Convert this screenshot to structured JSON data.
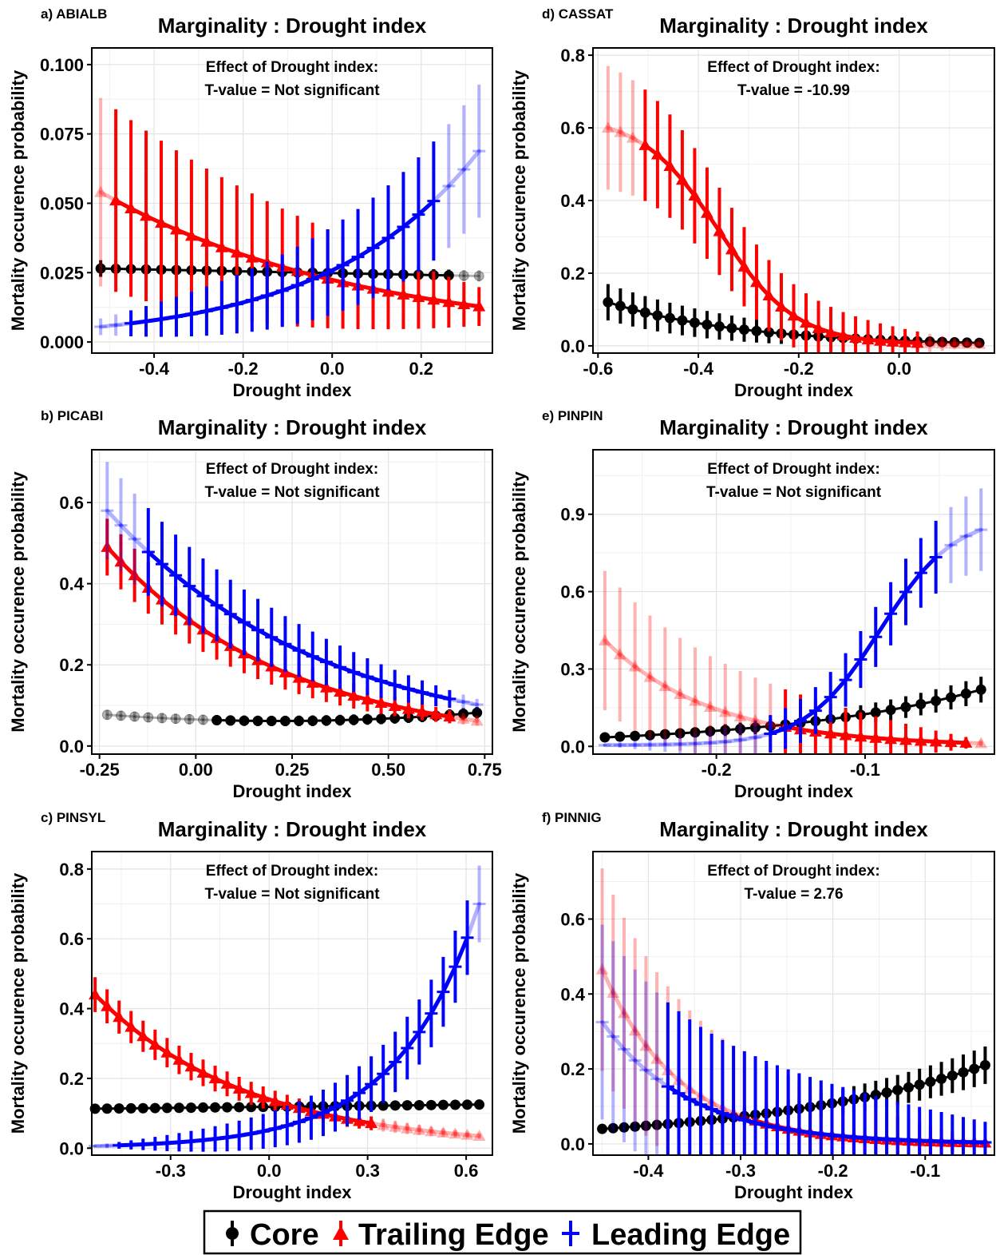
{
  "colors": {
    "core": "#000000",
    "trailing": "#ff0000",
    "leading": "#0000ff",
    "grid": "#e3e3e3",
    "frame": "#000000"
  },
  "legend": {
    "position": "bottom",
    "items": [
      {
        "label": "Core",
        "color": "#000000",
        "symbol": "circle"
      },
      {
        "label": "Trailing Edge",
        "color": "#ff0000",
        "symbol": "triangle"
      },
      {
        "label": "Leading Edge",
        "color": "#0000ff",
        "symbol": "cross"
      }
    ]
  },
  "chart_data": [
    {
      "panel": "a) ABIALB",
      "type": "line",
      "title": "Marginality : Drought index",
      "effect_line1": "Effect of Drought index:",
      "effect_line2": "T-value = Not significant",
      "xlabel": "Drought index",
      "ylabel": "Mortality occurence probability",
      "xlim": [
        -0.54,
        0.36
      ],
      "ylim": [
        -0.004,
        0.106
      ],
      "xticks": [
        -0.4,
        -0.2,
        0.0,
        0.2
      ],
      "xtick_labels": [
        "-0.4",
        "-0.2",
        "0.0",
        "0.2"
      ],
      "yticks": [
        0,
        0.025,
        0.05,
        0.075,
        0.1
      ],
      "ytick_labels": [
        "0.000",
        "0.025",
        "0.050",
        "0.075",
        "0.100"
      ],
      "series": [
        {
          "name": "Core",
          "xmin": -0.52,
          "xmax": 0.33,
          "n": 26,
          "curve": "lin",
          "y0": 0.0265,
          "y1": 0.0238,
          "err0": 0.003,
          "err1": 0.002,
          "faded_from": 0.29
        },
        {
          "name": "Trailing Edge",
          "xmin": -0.52,
          "xmax": 0.33,
          "n": 26,
          "curve": "exp",
          "y0": 0.054,
          "y1": 0.0128,
          "err0": 0.034,
          "err1": 0.007,
          "faded_to": -0.49
        },
        {
          "name": "Leading Edge",
          "xmin": -0.52,
          "xmax": 0.33,
          "n": 26,
          "curve": "exp",
          "y0": 0.0055,
          "y1": 0.0688,
          "err0": 0.003,
          "err1": 0.024,
          "faded_to": -0.48,
          "faded_from": 0.25
        }
      ]
    },
    {
      "panel": "b) PICABI",
      "type": "line",
      "title": "Marginality : Drought index",
      "effect_line1": "Effect of Drought index:",
      "effect_line2": "T-value = Not significant",
      "xlabel": "Drought index",
      "ylabel": "Mortality occurence probability",
      "xlim": [
        -0.27,
        0.77
      ],
      "ylim": [
        -0.02,
        0.73
      ],
      "xticks": [
        -0.25,
        0.0,
        0.25,
        0.5,
        0.75
      ],
      "xtick_labels": [
        "-0.25",
        "0.00",
        "0.25",
        "0.50",
        "0.75"
      ],
      "yticks": [
        0,
        0.2,
        0.4,
        0.6
      ],
      "ytick_labels": [
        "0.0",
        "0.2",
        "0.4",
        "0.6"
      ],
      "series": [
        {
          "name": "Core",
          "xmin": -0.23,
          "xmax": 0.73,
          "n": 28,
          "curve": "quad",
          "y0": 0.077,
          "y1": 0.082,
          "ymid": 0.044,
          "err0": 0.012,
          "err1": 0.014,
          "faded_to": 0.03
        },
        {
          "name": "Trailing Edge",
          "xmin": -0.23,
          "xmax": 0.73,
          "n": 28,
          "curve": "exp",
          "y0": 0.49,
          "y1": 0.062,
          "err0": 0.07,
          "err1": 0.012,
          "faded_from": 0.69
        },
        {
          "name": "Leading Edge",
          "xmin": -0.23,
          "xmax": 0.73,
          "n": 28,
          "curve": "exp",
          "y0": 0.58,
          "y1": 0.102,
          "err0": 0.12,
          "err1": 0.014,
          "faded_to": -0.14,
          "faded_from": 0.69
        }
      ]
    },
    {
      "panel": "c) PINSYL",
      "type": "line",
      "title": "Marginality : Drought index",
      "effect_line1": "Effect of Drought index:",
      "effect_line2": "T-value = Not significant",
      "xlabel": "Drought index",
      "ylabel": "Mortality occurence probability",
      "xlim": [
        -0.54,
        0.68
      ],
      "ylim": [
        -0.02,
        0.85
      ],
      "xticks": [
        -0.3,
        0.0,
        0.3,
        0.6
      ],
      "xtick_labels": [
        "-0.3",
        "0.0",
        "0.3",
        "0.6"
      ],
      "yticks": [
        0,
        0.2,
        0.4,
        0.6,
        0.8
      ],
      "ytick_labels": [
        "0.0",
        "0.2",
        "0.4",
        "0.6",
        "0.8"
      ],
      "series": [
        {
          "name": "Core",
          "xmin": -0.53,
          "xmax": 0.64,
          "n": 33,
          "curve": "lin",
          "y0": 0.113,
          "y1": 0.125,
          "err0": 0.008,
          "err1": 0.008
        },
        {
          "name": "Trailing Edge",
          "xmin": -0.53,
          "xmax": 0.64,
          "n": 33,
          "curve": "exp",
          "y0": 0.44,
          "y1": 0.035,
          "err0": 0.05,
          "err1": 0.008,
          "faded_from": 0.34
        },
        {
          "name": "Leading Edge",
          "xmin": -0.53,
          "xmax": 0.64,
          "n": 33,
          "curve": "exp",
          "y0": 0.006,
          "y1": 0.7,
          "err0": 0.003,
          "err1": 0.11,
          "faded_to": -0.47,
          "faded_from": 0.62
        }
      ]
    },
    {
      "panel": "d) CASSAT",
      "type": "line",
      "title": "Marginality : Drought index",
      "effect_line1": "Effect of Drought index:",
      "effect_line2": "T-value = -10.99",
      "xlabel": "Drought index",
      "ylabel": "Mortality occurence probability",
      "xlim": [
        -0.61,
        0.19
      ],
      "ylim": [
        -0.02,
        0.82
      ],
      "xticks": [
        -0.6,
        -0.4,
        -0.2,
        0.0
      ],
      "xtick_labels": [
        "-0.6",
        "-0.4",
        "-0.2",
        "0.0"
      ],
      "yticks": [
        0,
        0.2,
        0.4,
        0.6,
        0.8
      ],
      "ytick_labels": [
        "0.0",
        "0.2",
        "0.4",
        "0.6",
        "0.8"
      ],
      "series": [
        {
          "name": "Core",
          "xmin": -0.58,
          "xmax": 0.16,
          "n": 31,
          "curve": "exp",
          "y0": 0.12,
          "y1": 0.008,
          "err0": 0.05,
          "err1": 0.004
        },
        {
          "name": "Trailing Edge",
          "xmin": -0.58,
          "xmax": 0.16,
          "n": 31,
          "curve": "sig",
          "y0": 0.6,
          "y1": 0.005,
          "xmid": -0.36,
          "k": 13,
          "err0": 0.17,
          "err1": 0.004,
          "faded_to": -0.51,
          "faded_from": 0.05
        }
      ]
    },
    {
      "panel": "e) PINPIN",
      "type": "line",
      "title": "Marginality : Drought index",
      "effect_line1": "Effect of Drought index:",
      "effect_line2": "T-value = Not significant",
      "xlabel": "Drought index",
      "ylabel": "Mortality occurence probability",
      "xlim": [
        -0.283,
        -0.013
      ],
      "ylim": [
        -0.03,
        1.15
      ],
      "xticks": [
        -0.2,
        -0.1
      ],
      "xtick_labels": [
        "-0.2",
        "-0.1"
      ],
      "yticks": [
        0,
        0.3,
        0.6,
        0.9
      ],
      "ytick_labels": [
        "0.0",
        "0.3",
        "0.6",
        "0.9"
      ],
      "series": [
        {
          "name": "Core",
          "xmin": -0.275,
          "xmax": -0.022,
          "n": 26,
          "curve": "exp",
          "y0": 0.035,
          "y1": 0.22,
          "err0": 0.01,
          "err1": 0.05
        },
        {
          "name": "Trailing Edge",
          "xmin": -0.275,
          "xmax": -0.022,
          "n": 26,
          "curve": "exp",
          "y0": 0.41,
          "y1": 0.012,
          "err0": 0.27,
          "err1": 0.012,
          "faded_to": -0.16,
          "faded_from": -0.03
        },
        {
          "name": "Leading Edge",
          "xmin": -0.275,
          "xmax": -0.022,
          "n": 26,
          "curve": "sig",
          "y0": 0.005,
          "y1": 0.84,
          "xmid": -0.09,
          "k": 40,
          "err0": 0.004,
          "err1": 0.16,
          "faded_to": -0.17,
          "faded_from": -0.05
        }
      ]
    },
    {
      "panel": "f) PINNIG",
      "type": "line",
      "title": "Marginality : Drought index",
      "effect_line1": "Effect of Drought index:",
      "effect_line2": "T-value = 2.76",
      "xlabel": "Drought index",
      "ylabel": "Mortality occurence probability",
      "xlim": [
        -0.46,
        -0.025
      ],
      "ylim": [
        -0.03,
        0.78
      ],
      "xticks": [
        -0.4,
        -0.3,
        -0.2,
        -0.1
      ],
      "xtick_labels": [
        "-0.4",
        "-0.3",
        "-0.2",
        "-0.1"
      ],
      "yticks": [
        0,
        0.2,
        0.4,
        0.6
      ],
      "ytick_labels": [
        "0.0",
        "0.2",
        "0.4",
        "0.6"
      ],
      "series": [
        {
          "name": "Core",
          "xmin": -0.45,
          "xmax": -0.035,
          "n": 36,
          "curve": "exp",
          "y0": 0.04,
          "y1": 0.21,
          "err0": 0.007,
          "err1": 0.05
        },
        {
          "name": "Trailing Edge",
          "xmin": -0.45,
          "xmax": -0.035,
          "n": 36,
          "curve": "exp",
          "y0": 0.465,
          "y1": 0.003,
          "err0": 0.27,
          "err1": 0.004,
          "faded_to": -0.285
        },
        {
          "name": "Leading Edge",
          "xmin": -0.45,
          "xmax": -0.035,
          "n": 36,
          "curve": "exp",
          "y0": 0.325,
          "y1": 0.004,
          "err0": 0.26,
          "err1": 0.055,
          "faded_to": -0.39
        }
      ]
    }
  ]
}
